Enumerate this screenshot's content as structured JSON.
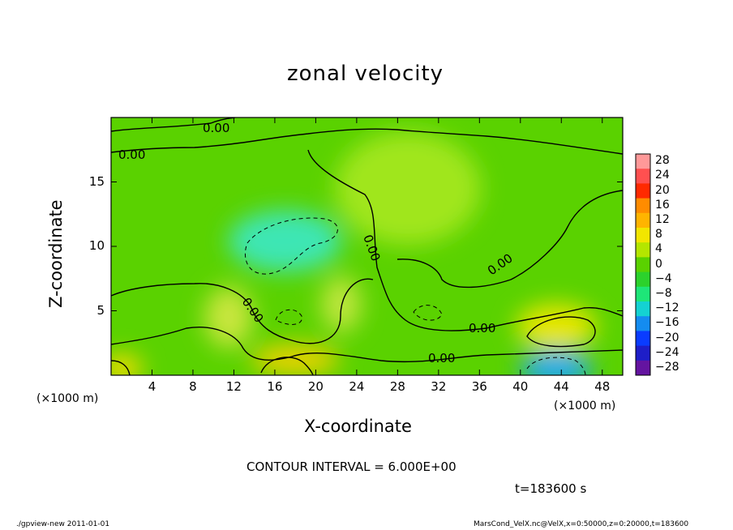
{
  "chart_data": {
    "type": "heatmap",
    "title": "zonal velocity",
    "xlabel": "X-coordinate",
    "ylabel": "Z-coordinate",
    "x_unit_label": "(×1000 m)",
    "y_unit_label": "(×1000 m)",
    "xlim": [
      0,
      50
    ],
    "ylim": [
      0,
      20
    ],
    "x_ticks": [
      4,
      8,
      12,
      16,
      20,
      24,
      28,
      32,
      36,
      40,
      44,
      48
    ],
    "y_ticks": [
      5,
      10,
      15
    ],
    "grid": false,
    "colorbar": {
      "placement": "right",
      "labels": [
        "28",
        "24",
        "20",
        "16",
        "12",
        "8",
        "4",
        "0",
        "−4",
        "−8",
        "−12",
        "−16",
        "−20",
        "−24",
        "−28"
      ],
      "colors": [
        "#ff9999",
        "#ff5050",
        "#ff2a00",
        "#ff8c00",
        "#ffb400",
        "#f2e600",
        "#b4e600",
        "#5ad200",
        "#2cd22c",
        "#1ee678",
        "#14d2d2",
        "#148cf0",
        "#0a3cff",
        "#1e1ec8",
        "#6414a0"
      ]
    },
    "contour_label": "0.00",
    "contour_interval_text": "CONTOUR INTERVAL = 6.000E+00",
    "time_text": "t=183600 s",
    "features": [
      {
        "x": 18,
        "z": 1.2,
        "value": 14,
        "color": "#e6d200"
      },
      {
        "x": 43.5,
        "z": 3.8,
        "value": 10,
        "color": "#e6e600"
      },
      {
        "x": 43.5,
        "z": 0.5,
        "value": -10,
        "color": "#1eaaf0"
      },
      {
        "x": 1,
        "z": 0.5,
        "value": 12,
        "color": "#f0dc00"
      },
      {
        "x": 17,
        "z": 10.4,
        "value": -5,
        "color": "#3ce6b4"
      },
      {
        "x": 11.5,
        "z": 4.5,
        "value": 6,
        "color": "#c8e63c"
      },
      {
        "x": 22.5,
        "z": 5.5,
        "value": 6,
        "color": "#bee63c"
      },
      {
        "x": 29,
        "z": 14.5,
        "value": 3,
        "color": "#a0e61e"
      }
    ]
  },
  "footer": {
    "left": "./gpview-new   2011-01-01",
    "right": "MarsCond_VelX.nc@VelX,x=0:50000,z=0:20000,t=183600"
  },
  "colors": {
    "background_field": "#5ad200",
    "contour_line": "#000000"
  }
}
